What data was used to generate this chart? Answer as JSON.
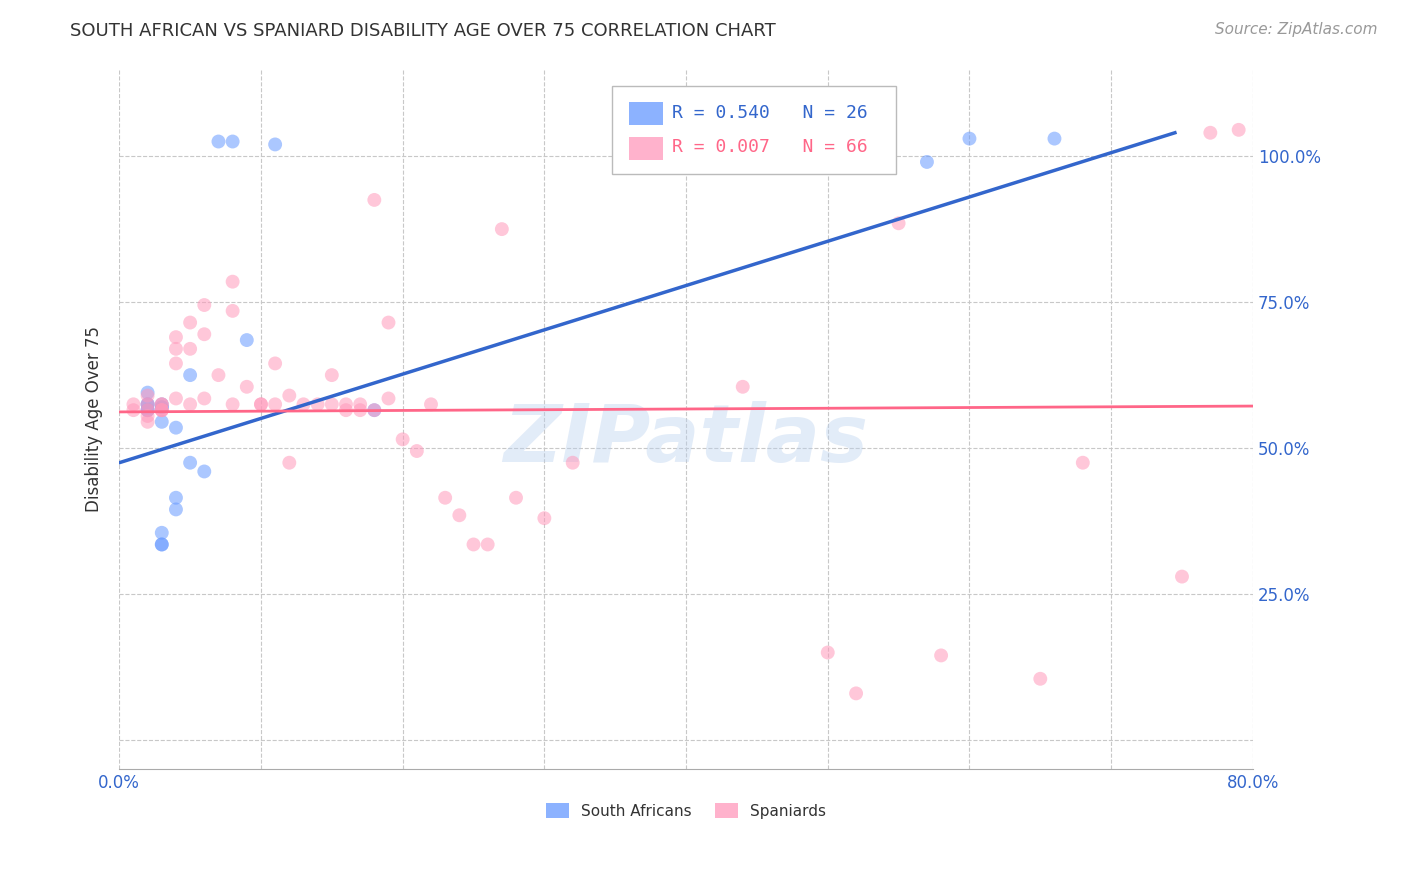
{
  "title": "SOUTH AFRICAN VS SPANIARD DISABILITY AGE OVER 75 CORRELATION CHART",
  "source": "Source: ZipAtlas.com",
  "ylabel": "Disability Age Over 75",
  "xlim": [
    0.0,
    0.8
  ],
  "ylim": [
    -0.05,
    1.15
  ],
  "xticks": [
    0.0,
    0.1,
    0.2,
    0.3,
    0.4,
    0.5,
    0.6,
    0.7,
    0.8
  ],
  "xticklabels": [
    "0.0%",
    "",
    "",
    "",
    "",
    "",
    "",
    "",
    "80.0%"
  ],
  "yticks": [
    0.0,
    0.25,
    0.5,
    0.75,
    1.0
  ],
  "yticklabels": [
    "",
    "25.0%",
    "50.0%",
    "75.0%",
    "100.0%"
  ],
  "watermark": "ZIPatlas",
  "legend_sa_r": "R = 0.540",
  "legend_sa_n": "N = 26",
  "legend_sp_r": "R = 0.007",
  "legend_sp_n": "N = 66",
  "sa_color": "#6699ff",
  "sp_color": "#ff99bb",
  "sa_line_color": "#3366cc",
  "sp_line_color": "#ff6688",
  "grid_color": "#c8c8c8",
  "title_color": "#333333",
  "axis_label_color": "#333333",
  "tick_color": "#3366cc",
  "background_color": "#ffffff",
  "sa_points_x": [
    0.02,
    0.09,
    0.02,
    0.18,
    0.02,
    0.03,
    0.03,
    0.03,
    0.04,
    0.05,
    0.06,
    0.04,
    0.04,
    0.03,
    0.03,
    0.03,
    0.02,
    0.02,
    0.07,
    0.08,
    0.05,
    0.11,
    0.03,
    0.57,
    0.6,
    0.66
  ],
  "sa_points_y": [
    0.575,
    0.685,
    0.575,
    0.565,
    0.595,
    0.575,
    0.57,
    0.545,
    0.535,
    0.475,
    0.46,
    0.415,
    0.395,
    0.355,
    0.335,
    0.57,
    0.565,
    0.565,
    1.025,
    1.025,
    0.625,
    1.02,
    0.335,
    0.99,
    1.03,
    1.03
  ],
  "sp_points_x": [
    0.18,
    0.08,
    0.08,
    0.03,
    0.01,
    0.01,
    0.02,
    0.02,
    0.02,
    0.02,
    0.02,
    0.03,
    0.03,
    0.03,
    0.03,
    0.04,
    0.04,
    0.04,
    0.04,
    0.05,
    0.05,
    0.05,
    0.06,
    0.06,
    0.06,
    0.07,
    0.08,
    0.09,
    0.1,
    0.1,
    0.11,
    0.11,
    0.12,
    0.12,
    0.13,
    0.14,
    0.15,
    0.15,
    0.16,
    0.16,
    0.17,
    0.17,
    0.18,
    0.19,
    0.19,
    0.2,
    0.21,
    0.22,
    0.23,
    0.24,
    0.25,
    0.26,
    0.27,
    0.28,
    0.3,
    0.32,
    0.44,
    0.55,
    0.58,
    0.65,
    0.68,
    0.75,
    0.77,
    0.79,
    0.5,
    0.52
  ],
  "sp_points_y": [
    0.925,
    0.785,
    0.735,
    0.575,
    0.575,
    0.565,
    0.59,
    0.575,
    0.565,
    0.555,
    0.545,
    0.575,
    0.565,
    0.565,
    0.565,
    0.69,
    0.67,
    0.645,
    0.585,
    0.715,
    0.67,
    0.575,
    0.745,
    0.695,
    0.585,
    0.625,
    0.575,
    0.605,
    0.575,
    0.575,
    0.645,
    0.575,
    0.59,
    0.475,
    0.575,
    0.575,
    0.625,
    0.575,
    0.575,
    0.565,
    0.575,
    0.565,
    0.565,
    0.715,
    0.585,
    0.515,
    0.495,
    0.575,
    0.415,
    0.385,
    0.335,
    0.335,
    0.875,
    0.415,
    0.38,
    0.475,
    0.605,
    0.885,
    0.145,
    0.105,
    0.475,
    0.28,
    1.04,
    1.045,
    0.15,
    0.08
  ],
  "sa_trend_x": [
    0.0,
    0.745
  ],
  "sa_trend_y": [
    0.475,
    1.04
  ],
  "sp_trend_x": [
    0.0,
    0.8
  ],
  "sp_trend_y": [
    0.562,
    0.572
  ],
  "marker_size": 100,
  "marker_alpha": 0.55,
  "title_fontsize": 13,
  "label_fontsize": 12,
  "tick_fontsize": 12,
  "legend_fontsize": 13,
  "source_fontsize": 11
}
